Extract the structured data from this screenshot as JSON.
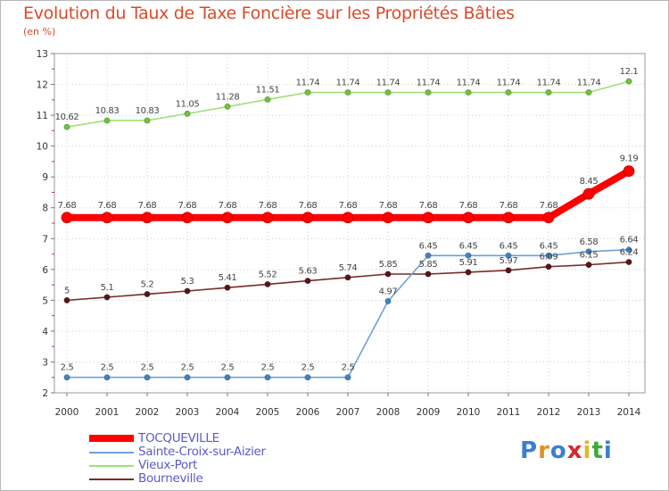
{
  "title": "Evolution du Taux de Taxe Foncière sur les Propriétés Bâties",
  "unit_label": "(en %)",
  "logo_text": "Proxiti",
  "chart_data": {
    "type": "line",
    "title": "Evolution du Taux de Taxe Foncière sur les Propriétés Bâties",
    "ylabel": "(en %)",
    "ylim": [
      2,
      13
    ],
    "yticks": [
      "2",
      "3",
      "4",
      "5",
      "6",
      "7",
      "8",
      "9",
      "10",
      "11",
      "12",
      "13"
    ],
    "x": [
      "2000",
      "2001",
      "2002",
      "2003",
      "2004",
      "2005",
      "2006",
      "2007",
      "2008",
      "2009",
      "2010",
      "2011",
      "2012",
      "2013",
      "2014"
    ],
    "legend_position": "bottom-left",
    "series": [
      {
        "name": "TOCQUEVILLE",
        "color": "#ff0000",
        "values": [
          7.68,
          7.68,
          7.68,
          7.68,
          7.68,
          7.68,
          7.68,
          7.68,
          7.68,
          7.68,
          7.68,
          7.68,
          7.68,
          8.45,
          9.19
        ],
        "labels": [
          "7.68",
          "7.68",
          "7.68",
          "7.68",
          "7.68",
          "7.68",
          "7.68",
          "7.68",
          "7.68",
          "7.68",
          "7.68",
          "7.68",
          "7.68",
          "8.45",
          "9.19"
        ]
      },
      {
        "name": "Sainte-Croix-sur-Aizier",
        "color": "#6fa0d8",
        "marker": "#3a84c6",
        "values": [
          2.5,
          2.5,
          2.5,
          2.5,
          2.5,
          2.5,
          2.5,
          2.5,
          4.97,
          6.45,
          6.45,
          6.45,
          6.45,
          6.58,
          6.64
        ],
        "labels": [
          "2.5",
          "2.5",
          "2.5",
          "2.5",
          "2.5",
          "2.5",
          "2.5",
          "2.5",
          "4.97",
          "6.45",
          "6.45",
          "6.45",
          "6.45",
          "6.58",
          "6.64"
        ]
      },
      {
        "name": "Vieux-Port",
        "color": "#a0e078",
        "marker": "#6dc43a",
        "values": [
          10.62,
          10.83,
          10.83,
          11.05,
          11.28,
          11.51,
          11.74,
          11.74,
          11.74,
          11.74,
          11.74,
          11.74,
          11.74,
          11.74,
          12.1
        ],
        "labels": [
          "10.62",
          "10.83",
          "10.83",
          "11.05",
          "11.28",
          "11.51",
          "11.74",
          "11.74",
          "11.74",
          "11.74",
          "11.74",
          "11.74",
          "11.74",
          "11.74",
          "12.1"
        ]
      },
      {
        "name": "Bourneville",
        "color": "#7a2a2a",
        "marker": "#5a1414",
        "values": [
          5,
          5.1,
          5.2,
          5.3,
          5.41,
          5.52,
          5.63,
          5.74,
          5.85,
          5.85,
          5.91,
          5.97,
          6.09,
          6.15,
          6.24
        ],
        "labels": [
          "5",
          "5.1",
          "5.2",
          "5.3",
          "5.41",
          "5.52",
          "5.63",
          "5.74",
          "5.85",
          "5.85",
          "5.91",
          "5.97",
          "6.09",
          "6.15",
          "6.24"
        ]
      }
    ]
  }
}
